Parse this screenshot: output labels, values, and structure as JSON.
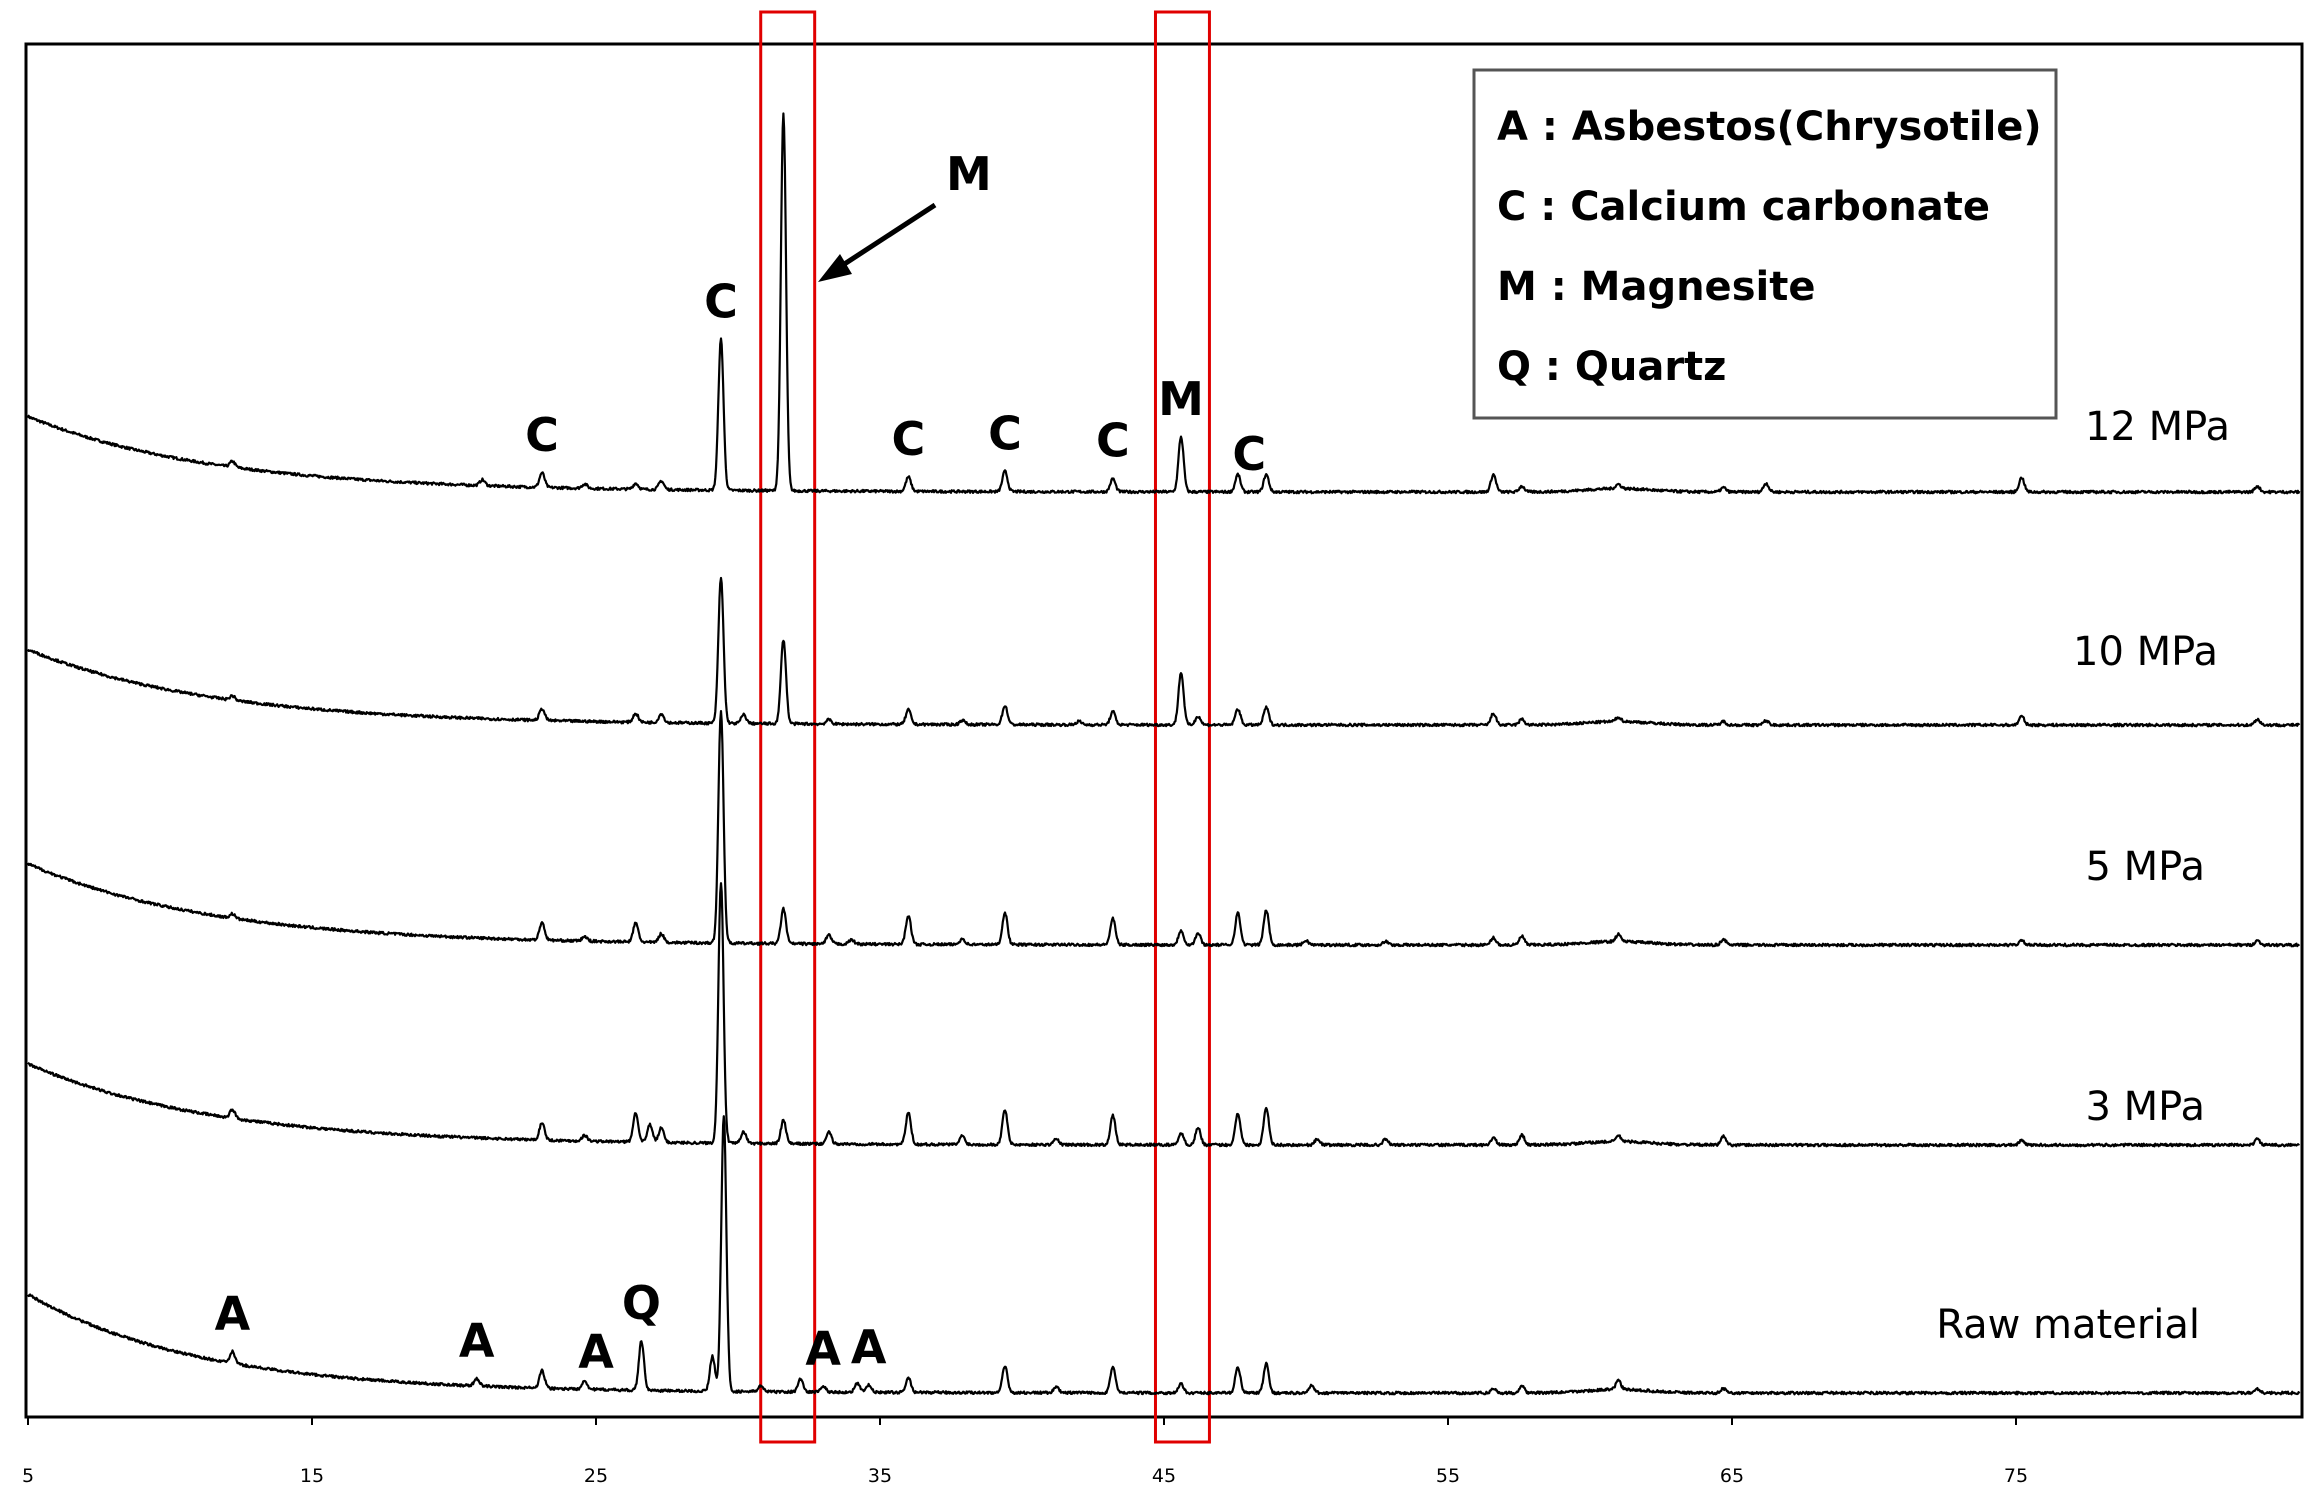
{
  "chart_data": {
    "type": "line",
    "title": "",
    "xlabel": "",
    "ylabel": "",
    "xlim": [
      5,
      85
    ],
    "x_ticks": [
      "5",
      "15",
      "25",
      "35",
      "45",
      "55",
      "65",
      "75"
    ],
    "grid": false,
    "legend_position": "top-right",
    "legend": [
      "A : Asbestos(Chrysotile)",
      "C : Calcium carbonate",
      "M : Magnesite",
      "Q : Quartz"
    ],
    "highlight_regions": [
      {
        "x_start": 30.8,
        "x_end": 32.7,
        "color": "#e00000"
      },
      {
        "x_start": 44.7,
        "x_end": 46.6,
        "color": "#e00000"
      }
    ],
    "arrow_annotation": {
      "label": "M",
      "points_to_x": 32.7
    },
    "series": [
      {
        "name": "12 MPa",
        "background": {
          "start": 26,
          "decay": 6.5
        },
        "peaks": [
          {
            "x": 12.2,
            "h": 2
          },
          {
            "x": 21.0,
            "h": 2
          },
          {
            "x": 23.1,
            "h": 5
          },
          {
            "x": 24.6,
            "h": 1.5
          },
          {
            "x": 26.4,
            "h": 2
          },
          {
            "x": 27.3,
            "h": 3
          },
          {
            "x": 29.4,
            "h": 52
          },
          {
            "x": 31.6,
            "h": 130
          },
          {
            "x": 36.0,
            "h": 5
          },
          {
            "x": 39.4,
            "h": 7
          },
          {
            "x": 43.2,
            "h": 4.5
          },
          {
            "x": 45.6,
            "h": 19
          },
          {
            "x": 47.6,
            "h": 6
          },
          {
            "x": 48.6,
            "h": 6
          },
          {
            "x": 56.6,
            "h": 6
          },
          {
            "x": 57.6,
            "h": 2
          },
          {
            "x": 61.0,
            "h": 1.5
          },
          {
            "x": 64.7,
            "h": 1.5
          },
          {
            "x": 66.2,
            "h": 3
          },
          {
            "x": 75.2,
            "h": 5
          },
          {
            "x": 83.5,
            "h": 2
          }
        ],
        "peak_labels": [
          {
            "x": 23.1,
            "text": "C"
          },
          {
            "x": 29.4,
            "text": "C"
          },
          {
            "x": 36.0,
            "text": "C"
          },
          {
            "x": 39.4,
            "text": "C"
          },
          {
            "x": 43.2,
            "text": "C"
          },
          {
            "x": 45.6,
            "text": "M"
          },
          {
            "x": 48.0,
            "text": "C"
          }
        ]
      },
      {
        "name": "10 MPa",
        "background": {
          "start": 26,
          "decay": 6.5
        },
        "peaks": [
          {
            "x": 12.2,
            "h": 1.5
          },
          {
            "x": 23.1,
            "h": 4
          },
          {
            "x": 26.4,
            "h": 3
          },
          {
            "x": 27.3,
            "h": 3
          },
          {
            "x": 29.4,
            "h": 50
          },
          {
            "x": 30.2,
            "h": 3
          },
          {
            "x": 31.6,
            "h": 29
          },
          {
            "x": 33.2,
            "h": 1.5
          },
          {
            "x": 36.0,
            "h": 5
          },
          {
            "x": 37.9,
            "h": 1.5
          },
          {
            "x": 39.4,
            "h": 6.5
          },
          {
            "x": 42.0,
            "h": 1.2
          },
          {
            "x": 43.2,
            "h": 4.5
          },
          {
            "x": 45.6,
            "h": 18
          },
          {
            "x": 46.2,
            "h": 3
          },
          {
            "x": 47.6,
            "h": 5.5
          },
          {
            "x": 48.6,
            "h": 6
          },
          {
            "x": 56.6,
            "h": 4
          },
          {
            "x": 57.6,
            "h": 2
          },
          {
            "x": 61.0,
            "h": 1.5
          },
          {
            "x": 64.7,
            "h": 1.2
          },
          {
            "x": 66.2,
            "h": 1.5
          },
          {
            "x": 75.2,
            "h": 3
          },
          {
            "x": 83.5,
            "h": 2
          }
        ],
        "peak_labels": []
      },
      {
        "name": "5 MPa",
        "background": {
          "start": 28,
          "decay": 6.5
        },
        "peaks": [
          {
            "x": 12.2,
            "h": 1.5
          },
          {
            "x": 23.1,
            "h": 6
          },
          {
            "x": 24.6,
            "h": 1.5
          },
          {
            "x": 26.4,
            "h": 6.5
          },
          {
            "x": 27.3,
            "h": 3
          },
          {
            "x": 29.4,
            "h": 80
          },
          {
            "x": 31.6,
            "h": 12
          },
          {
            "x": 33.2,
            "h": 3
          },
          {
            "x": 34.0,
            "h": 1.5
          },
          {
            "x": 36.0,
            "h": 10
          },
          {
            "x": 37.9,
            "h": 2
          },
          {
            "x": 39.4,
            "h": 11
          },
          {
            "x": 43.2,
            "h": 9
          },
          {
            "x": 45.6,
            "h": 5
          },
          {
            "x": 46.2,
            "h": 4
          },
          {
            "x": 47.6,
            "h": 11
          },
          {
            "x": 48.6,
            "h": 12
          },
          {
            "x": 50.0,
            "h": 1.5
          },
          {
            "x": 52.8,
            "h": 1.2
          },
          {
            "x": 56.6,
            "h": 2.5
          },
          {
            "x": 57.6,
            "h": 3
          },
          {
            "x": 61.0,
            "h": 2.5
          },
          {
            "x": 64.7,
            "h": 2
          },
          {
            "x": 75.2,
            "h": 1.5
          },
          {
            "x": 83.5,
            "h": 1.5
          }
        ],
        "peak_labels": []
      },
      {
        "name": "3 MPa",
        "background": {
          "start": 28,
          "decay": 6.5
        },
        "peaks": [
          {
            "x": 12.2,
            "h": 3
          },
          {
            "x": 23.1,
            "h": 6
          },
          {
            "x": 24.6,
            "h": 2
          },
          {
            "x": 26.4,
            "h": 10
          },
          {
            "x": 26.9,
            "h": 6
          },
          {
            "x": 27.3,
            "h": 5
          },
          {
            "x": 29.4,
            "h": 90
          },
          {
            "x": 30.2,
            "h": 4
          },
          {
            "x": 31.6,
            "h": 8
          },
          {
            "x": 33.2,
            "h": 4
          },
          {
            "x": 36.0,
            "h": 11
          },
          {
            "x": 37.9,
            "h": 3
          },
          {
            "x": 39.4,
            "h": 12
          },
          {
            "x": 41.2,
            "h": 2
          },
          {
            "x": 43.2,
            "h": 10
          },
          {
            "x": 45.6,
            "h": 4
          },
          {
            "x": 46.2,
            "h": 6
          },
          {
            "x": 47.6,
            "h": 11
          },
          {
            "x": 48.6,
            "h": 13
          },
          {
            "x": 50.4,
            "h": 2
          },
          {
            "x": 52.8,
            "h": 2
          },
          {
            "x": 56.6,
            "h": 2.5
          },
          {
            "x": 57.6,
            "h": 3.5
          },
          {
            "x": 61.0,
            "h": 2
          },
          {
            "x": 64.7,
            "h": 3
          },
          {
            "x": 75.2,
            "h": 1.5
          },
          {
            "x": 83.5,
            "h": 2
          }
        ],
        "peak_labels": []
      },
      {
        "name": "Raw material",
        "background": {
          "start": 34,
          "decay": 6
        },
        "peaks": [
          {
            "x": 12.2,
            "h": 4
          },
          {
            "x": 20.8,
            "h": 2.5
          },
          {
            "x": 23.1,
            "h": 6
          },
          {
            "x": 24.6,
            "h": 3
          },
          {
            "x": 26.6,
            "h": 17
          },
          {
            "x": 29.1,
            "h": 12
          },
          {
            "x": 29.5,
            "h": 95
          },
          {
            "x": 30.8,
            "h": 2
          },
          {
            "x": 32.2,
            "h": 4.5
          },
          {
            "x": 33.0,
            "h": 2
          },
          {
            "x": 34.2,
            "h": 3
          },
          {
            "x": 34.6,
            "h": 2.5
          },
          {
            "x": 36.0,
            "h": 5
          },
          {
            "x": 39.4,
            "h": 9
          },
          {
            "x": 41.2,
            "h": 2
          },
          {
            "x": 43.2,
            "h": 9
          },
          {
            "x": 45.6,
            "h": 3
          },
          {
            "x": 47.6,
            "h": 9
          },
          {
            "x": 48.6,
            "h": 10
          },
          {
            "x": 50.2,
            "h": 2.5
          },
          {
            "x": 56.6,
            "h": 1.5
          },
          {
            "x": 57.6,
            "h": 2.5
          },
          {
            "x": 61.0,
            "h": 3
          },
          {
            "x": 64.7,
            "h": 1.5
          },
          {
            "x": 83.5,
            "h": 1.5
          }
        ],
        "peak_labels": [
          {
            "x": 12.2,
            "text": "A"
          },
          {
            "x": 20.8,
            "text": "A"
          },
          {
            "x": 25.0,
            "text": "A"
          },
          {
            "x": 26.6,
            "text": "Q"
          },
          {
            "x": 33.0,
            "text": "A"
          },
          {
            "x": 34.6,
            "text": "A"
          }
        ]
      }
    ]
  }
}
